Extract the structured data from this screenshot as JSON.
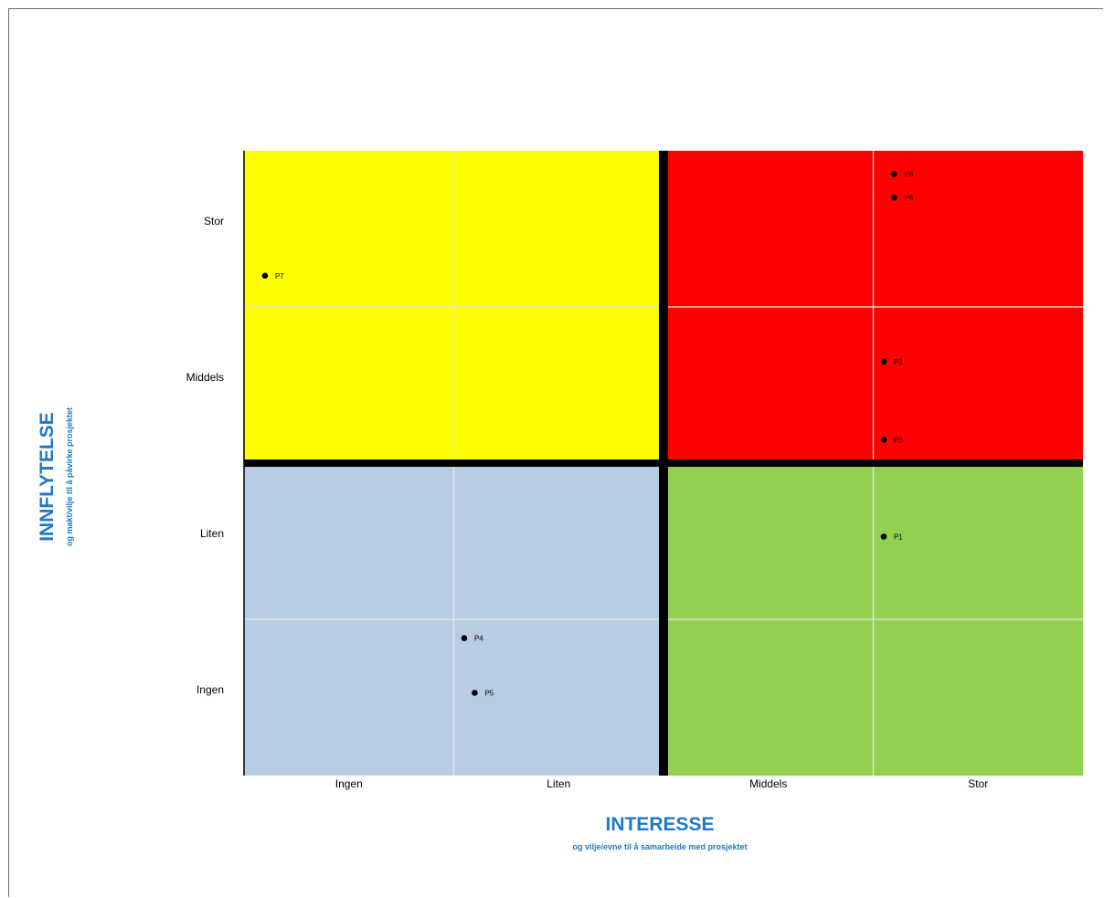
{
  "chart_data": {
    "type": "scatter",
    "xlabel": "INTERESSE",
    "xlabel_sub": "og vilje/evne til å samarbeide med prosjektet",
    "ylabel": "INNFLYTELSE",
    "ylabel_sub": "og makt/vilje til å påvirke prosjektet",
    "x_categories": [
      "Ingen",
      "Liten",
      "Middels",
      "Stor"
    ],
    "y_categories": [
      "Ingen",
      "Liten",
      "Middels",
      "Stor"
    ],
    "xlim": [
      0,
      4
    ],
    "ylim": [
      0,
      4
    ],
    "grid": true,
    "quadrants": [
      {
        "position": "top-left",
        "color": "#ffff00"
      },
      {
        "position": "top-right",
        "color": "#ff0000"
      },
      {
        "position": "bottom-left",
        "color": "#b8cce4"
      },
      {
        "position": "bottom-right",
        "color": "#92d050"
      }
    ],
    "points": [
      {
        "label": "P1",
        "x": 3.05,
        "y": 1.53
      },
      {
        "label": "P2",
        "x": 3.05,
        "y": 2.65
      },
      {
        "label": "P3",
        "x": 3.05,
        "y": 2.15
      },
      {
        "label": "P4",
        "x": 1.05,
        "y": 0.88
      },
      {
        "label": "P5",
        "x": 1.1,
        "y": 0.53
      },
      {
        "label": "P6",
        "x": 3.1,
        "y": 3.85
      },
      {
        "label": "P6",
        "x": 3.1,
        "y": 3.7
      },
      {
        "label": "P7",
        "x": 0.1,
        "y": 3.2
      }
    ]
  }
}
